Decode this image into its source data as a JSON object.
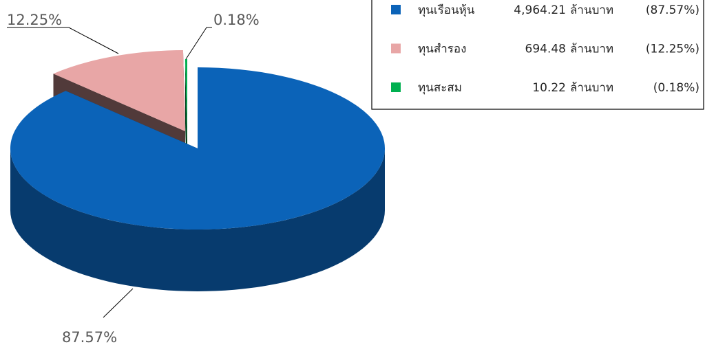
{
  "chart_data": {
    "type": "pie3d",
    "categories": [
      "ทุนเรือนหุ้น",
      "ทุนสำรอง",
      "ทุนสะสม"
    ],
    "values": [
      87.57,
      12.25,
      0.18
    ],
    "value_labels": [
      "87.57%",
      "12.25%",
      "0.18%"
    ],
    "colors": [
      "#0b63b8",
      "#e8a6a6",
      "#00b050"
    ],
    "amounts": [
      4964.21,
      694.48,
      10.22
    ],
    "amount_labels": [
      "4,964.21",
      "694.48",
      "10.22"
    ],
    "unit": "ล้านบาท",
    "legend_value_labels": [
      "(87.57%)",
      "(12.25%)",
      "(0.18%)"
    ]
  }
}
